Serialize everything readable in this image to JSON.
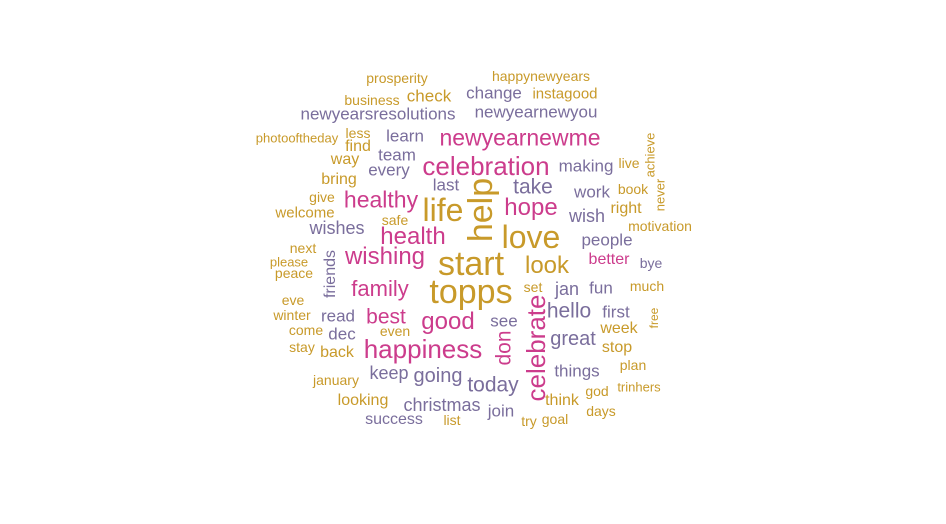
{
  "palette": {
    "gold": "#c89a2a",
    "pink": "#cc3c8c",
    "purple": "#7a6e9c"
  },
  "cloud": {
    "words": [
      {
        "text": "prosperity",
        "color": "gold"
      },
      {
        "text": "happynewyears",
        "color": "gold"
      },
      {
        "text": "business",
        "color": "gold"
      },
      {
        "text": "check",
        "color": "gold"
      },
      {
        "text": "change",
        "color": "purple"
      },
      {
        "text": "instagood",
        "color": "gold"
      },
      {
        "text": "newyearsresolutions",
        "color": "purple"
      },
      {
        "text": "newyearnewyou",
        "color": "purple"
      },
      {
        "text": "photooftheday",
        "color": "gold"
      },
      {
        "text": "less",
        "color": "gold"
      },
      {
        "text": "learn",
        "color": "purple"
      },
      {
        "text": "newyearnewme",
        "color": "pink"
      },
      {
        "text": "find",
        "color": "gold"
      },
      {
        "text": "team",
        "color": "purple"
      },
      {
        "text": "way",
        "color": "gold"
      },
      {
        "text": "every",
        "color": "purple"
      },
      {
        "text": "celebration",
        "color": "pink"
      },
      {
        "text": "making",
        "color": "purple"
      },
      {
        "text": "live",
        "color": "gold"
      },
      {
        "text": "achieve",
        "color": "gold"
      },
      {
        "text": "bring",
        "color": "gold"
      },
      {
        "text": "last",
        "color": "purple"
      },
      {
        "text": "take",
        "color": "purple"
      },
      {
        "text": "work",
        "color": "purple"
      },
      {
        "text": "book",
        "color": "gold"
      },
      {
        "text": "never",
        "color": "gold"
      },
      {
        "text": "give",
        "color": "gold"
      },
      {
        "text": "healthy",
        "color": "pink"
      },
      {
        "text": "help",
        "color": "gold"
      },
      {
        "text": "hope",
        "color": "pink"
      },
      {
        "text": "right",
        "color": "gold"
      },
      {
        "text": "welcome",
        "color": "gold"
      },
      {
        "text": "life",
        "color": "gold"
      },
      {
        "text": "wish",
        "color": "purple"
      },
      {
        "text": "safe",
        "color": "gold"
      },
      {
        "text": "motivation",
        "color": "gold"
      },
      {
        "text": "wishes",
        "color": "purple"
      },
      {
        "text": "love",
        "color": "gold"
      },
      {
        "text": "health",
        "color": "pink"
      },
      {
        "text": "people",
        "color": "purple"
      },
      {
        "text": "next",
        "color": "gold"
      },
      {
        "text": "wishing",
        "color": "pink"
      },
      {
        "text": "start",
        "color": "gold"
      },
      {
        "text": "look",
        "color": "gold"
      },
      {
        "text": "better",
        "color": "pink"
      },
      {
        "text": "bye",
        "color": "purple"
      },
      {
        "text": "please",
        "color": "gold"
      },
      {
        "text": "peace",
        "color": "gold"
      },
      {
        "text": "friends",
        "color": "purple"
      },
      {
        "text": "family",
        "color": "pink"
      },
      {
        "text": "topps",
        "color": "gold"
      },
      {
        "text": "jan",
        "color": "purple"
      },
      {
        "text": "fun",
        "color": "purple"
      },
      {
        "text": "set",
        "color": "gold"
      },
      {
        "text": "much",
        "color": "gold"
      },
      {
        "text": "eve",
        "color": "gold"
      },
      {
        "text": "hello",
        "color": "purple"
      },
      {
        "text": "first",
        "color": "purple"
      },
      {
        "text": "free",
        "color": "gold"
      },
      {
        "text": "winter",
        "color": "gold"
      },
      {
        "text": "read",
        "color": "purple"
      },
      {
        "text": "best",
        "color": "pink"
      },
      {
        "text": "good",
        "color": "pink"
      },
      {
        "text": "see",
        "color": "purple"
      },
      {
        "text": "celebrate",
        "color": "pink"
      },
      {
        "text": "week",
        "color": "gold"
      },
      {
        "text": "come",
        "color": "gold"
      },
      {
        "text": "dec",
        "color": "purple"
      },
      {
        "text": "even",
        "color": "gold"
      },
      {
        "text": "don",
        "color": "pink"
      },
      {
        "text": "great",
        "color": "purple"
      },
      {
        "text": "stay",
        "color": "gold"
      },
      {
        "text": "back",
        "color": "gold"
      },
      {
        "text": "happiness",
        "color": "pink"
      },
      {
        "text": "stop",
        "color": "gold"
      },
      {
        "text": "plan",
        "color": "gold"
      },
      {
        "text": "january",
        "color": "gold"
      },
      {
        "text": "keep",
        "color": "purple"
      },
      {
        "text": "going",
        "color": "purple"
      },
      {
        "text": "today",
        "color": "purple"
      },
      {
        "text": "things",
        "color": "purple"
      },
      {
        "text": "god",
        "color": "gold"
      },
      {
        "text": "trinhers",
        "color": "gold"
      },
      {
        "text": "looking",
        "color": "gold"
      },
      {
        "text": "christmas",
        "color": "purple"
      },
      {
        "text": "join",
        "color": "purple"
      },
      {
        "text": "think",
        "color": "gold"
      },
      {
        "text": "days",
        "color": "gold"
      },
      {
        "text": "success",
        "color": "purple"
      },
      {
        "text": "list",
        "color": "gold"
      },
      {
        "text": "try",
        "color": "gold"
      },
      {
        "text": "goal",
        "color": "gold"
      }
    ]
  }
}
